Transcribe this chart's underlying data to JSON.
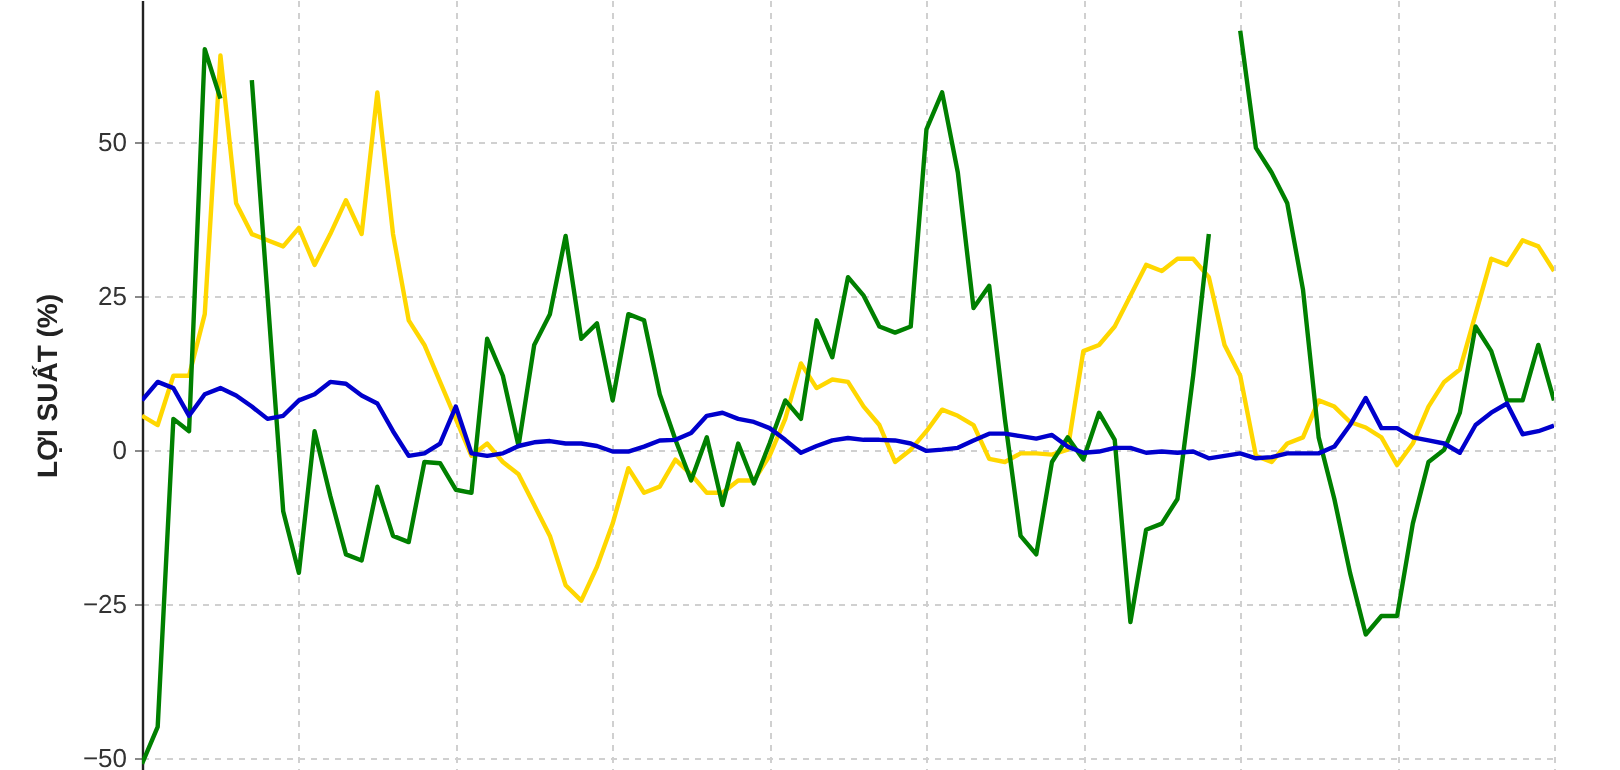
{
  "chart_data": {
    "type": "line",
    "ylabel": "LỢI SUẤT (%)",
    "categories": [
      null,
      null,
      null,
      null,
      null,
      null,
      null,
      null,
      null,
      null,
      null,
      null,
      null,
      null,
      null,
      null,
      null,
      null,
      null,
      null,
      null,
      null,
      null,
      null,
      null,
      null,
      null,
      null,
      null,
      null,
      null,
      null,
      null,
      null,
      null,
      null,
      null,
      null,
      null,
      null,
      null,
      null,
      null,
      null,
      null,
      null,
      null,
      null,
      null,
      null,
      null,
      null,
      null,
      null,
      null,
      null,
      null,
      null,
      null,
      null,
      null,
      null,
      null,
      null,
      null,
      null,
      null,
      null,
      null,
      null,
      null,
      null,
      null,
      null,
      null,
      null,
      null,
      null,
      null,
      null,
      null,
      null,
      null,
      null,
      null,
      null,
      null,
      null,
      null,
      null,
      null
    ],
    "series": [
      {
        "color": "#ffd700",
        "values": [
          5.5,
          4,
          12,
          12,
          22,
          64,
          40,
          35,
          34,
          33,
          36,
          30,
          35,
          40.5,
          35,
          58,
          35,
          21,
          17,
          11,
          5,
          -1,
          1,
          -2,
          -4,
          -9,
          -14,
          -22,
          -24.5,
          -19,
          -12,
          -3,
          -7,
          -6,
          -1.6,
          -4,
          -7,
          -7,
          -5,
          -5,
          -1,
          5,
          14,
          10,
          11.4,
          11,
          7,
          4,
          -2,
          0,
          3,
          6.5,
          5.5,
          4,
          -1.5,
          -2,
          -0.6,
          -0.6,
          -0.8,
          0,
          16,
          17,
          20,
          25,
          30,
          29,
          31,
          31,
          28,
          17,
          12,
          -1,
          -2,
          1,
          2,
          8,
          7,
          4.5,
          3.6,
          2,
          -2.5,
          1,
          7,
          11,
          13,
          22,
          31,
          30,
          34,
          33,
          29
        ]
      },
      {
        "color": "#008000",
        "values": [
          -51,
          -45,
          5,
          3,
          65,
          57,
          null,
          60,
          25,
          -10,
          -20,
          3,
          -7.5,
          -17,
          -18,
          -6,
          -14,
          -15,
          -2,
          -2.2,
          -6.5,
          -7,
          18,
          12,
          0.6,
          17,
          22,
          34.7,
          18,
          20.5,
          8,
          22,
          21,
          9,
          1.6,
          -5,
          2,
          -9,
          1,
          -5.5,
          1,
          8,
          5,
          21,
          15,
          28,
          25,
          20,
          19,
          20,
          52,
          58,
          45,
          23,
          26.6,
          5,
          -14,
          -17,
          -2,
          2,
          -1.6,
          6,
          1.6,
          -28,
          -13,
          -12,
          -8,
          12,
          35,
          null,
          68,
          49,
          45,
          40,
          26,
          2,
          -8,
          -20,
          -30,
          -27,
          -27,
          -12,
          -2,
          0,
          6,
          20,
          16,
          8,
          8,
          17,
          8
        ]
      },
      {
        "color": "#0000cc",
        "values": [
          8,
          11,
          10,
          5.5,
          9,
          10,
          8.8,
          7,
          5,
          5.5,
          8,
          9,
          11,
          10.7,
          8.8,
          7.5,
          3,
          -1,
          -0.6,
          1,
          7,
          -0.6,
          -1,
          -0.6,
          0.6,
          1.2,
          1.4,
          1,
          1,
          0.6,
          -0.3,
          -0.3,
          0.5,
          1.5,
          1.6,
          2.7,
          5.5,
          6,
          5,
          4.5,
          3.5,
          1.6,
          -0.5,
          0.6,
          1.5,
          1.9,
          1.6,
          1.6,
          1.5,
          1,
          -0.2,
          0,
          0.3,
          1.5,
          2.6,
          2.6,
          2.2,
          1.8,
          2.4,
          0.5,
          -0.5,
          -0.3,
          0.3,
          0.3,
          -0.5,
          -0.3,
          -0.5,
          -0.3,
          -1.4,
          -1,
          -0.6,
          -1.4,
          -1.2,
          -0.6,
          -0.6,
          -0.6,
          0.5,
          4,
          8.4,
          3.5,
          3.5,
          2,
          1.5,
          1,
          -0.5,
          4,
          6,
          7.5,
          2.5,
          3,
          3.9
        ]
      }
    ],
    "ylim": [
      -52,
      73
    ],
    "yticks": [
      -50,
      -25,
      0,
      25,
      50
    ],
    "grid": true,
    "tick_labels": "y"
  }
}
